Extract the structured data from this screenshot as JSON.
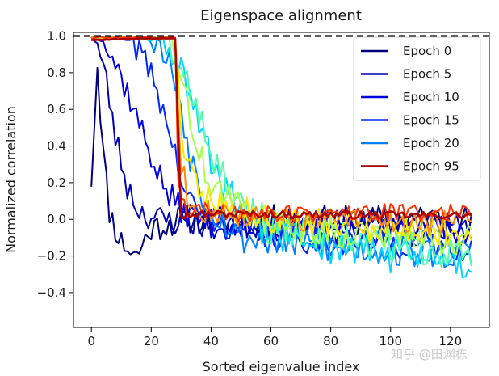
{
  "chart_data": {
    "type": "line",
    "title": "Eigenspace alignment",
    "xlabel": "Sorted eigenvalue index",
    "ylabel": "Normalized correlation",
    "xlim": [
      -6,
      133
    ],
    "ylim": [
      -0.59,
      1.02
    ],
    "xticks": [
      0,
      20,
      40,
      60,
      80,
      100,
      120
    ],
    "yticks": [
      -0.4,
      -0.2,
      0.0,
      0.2,
      0.4,
      0.6,
      0.8,
      1.0
    ],
    "ytick_labels": [
      "−0.4",
      "−0.2",
      "0.0",
      "0.2",
      "0.4",
      "0.6",
      "0.8",
      "1.0"
    ],
    "reference_line": {
      "y": 1.0,
      "style": "dashed",
      "color": "#000000"
    },
    "grid": false,
    "legend": {
      "position": "top-right",
      "entries": [
        "Epoch 0",
        "Epoch 5",
        "Epoch 10",
        "Epoch 15",
        "Epoch 20",
        "Epoch 95"
      ]
    },
    "num_points": 128,
    "series": [
      {
        "name": "Epoch 0",
        "color": "#00007f",
        "legend": true,
        "anchors": [
          [
            0,
            0.22
          ],
          [
            2,
            0.85
          ],
          [
            4,
            0.35
          ],
          [
            6,
            0.05
          ],
          [
            8,
            -0.05
          ],
          [
            10,
            -0.12
          ],
          [
            15,
            -0.2
          ],
          [
            20,
            -0.05
          ],
          [
            30,
            0.0
          ],
          [
            60,
            0.0
          ],
          [
            127,
            0.0
          ]
        ],
        "noise": 0.08,
        "seed": 11
      },
      {
        "name": "Epoch 5",
        "color": "#0000b0",
        "legend": true,
        "anchors": [
          [
            0,
            1.0
          ],
          [
            2,
            0.95
          ],
          [
            5,
            0.75
          ],
          [
            8,
            0.45
          ],
          [
            12,
            0.18
          ],
          [
            16,
            0.05
          ],
          [
            22,
            0.0
          ],
          [
            40,
            -0.03
          ],
          [
            127,
            -0.02
          ]
        ],
        "noise": 0.08,
        "seed": 23
      },
      {
        "name": "Epoch 10",
        "color": "#0000e0",
        "legend": true,
        "anchors": [
          [
            0,
            1.0
          ],
          [
            4,
            0.98
          ],
          [
            8,
            0.85
          ],
          [
            12,
            0.7
          ],
          [
            16,
            0.52
          ],
          [
            20,
            0.35
          ],
          [
            25,
            0.15
          ],
          [
            30,
            0.05
          ],
          [
            45,
            -0.05
          ],
          [
            127,
            -0.08
          ]
        ],
        "noise": 0.08,
        "seed": 37
      },
      {
        "name": "Epoch 15",
        "color": "#0026ff",
        "legend": true,
        "anchors": [
          [
            0,
            1.0
          ],
          [
            10,
            0.99
          ],
          [
            15,
            0.95
          ],
          [
            20,
            0.8
          ],
          [
            24,
            0.6
          ],
          [
            28,
            0.35
          ],
          [
            32,
            0.1
          ],
          [
            40,
            0.0
          ],
          [
            60,
            -0.1
          ],
          [
            127,
            -0.15
          ]
        ],
        "noise": 0.08,
        "seed": 41
      },
      {
        "name": "Epoch 20",
        "color": "#0080ff",
        "legend": true,
        "anchors": [
          [
            0,
            1.0
          ],
          [
            18,
            0.99
          ],
          [
            22,
            0.95
          ],
          [
            26,
            0.85
          ],
          [
            29,
            0.7
          ],
          [
            33,
            0.35
          ],
          [
            38,
            0.1
          ],
          [
            50,
            -0.1
          ],
          [
            80,
            -0.15
          ],
          [
            127,
            -0.2
          ]
        ],
        "noise": 0.09,
        "seed": 53
      },
      {
        "name": "",
        "color": "#00d4ff",
        "legend": false,
        "anchors": [
          [
            0,
            1.0
          ],
          [
            24,
            0.98
          ],
          [
            28,
            0.9
          ],
          [
            30,
            0.8
          ],
          [
            34,
            0.6
          ],
          [
            38,
            0.4
          ],
          [
            45,
            0.15
          ],
          [
            55,
            -0.05
          ],
          [
            80,
            -0.15
          ],
          [
            127,
            -0.25
          ]
        ],
        "noise": 0.1,
        "seed": 61
      },
      {
        "name": "",
        "color": "#4dffa9",
        "legend": false,
        "anchors": [
          [
            0,
            1.0
          ],
          [
            26,
            0.99
          ],
          [
            30,
            0.85
          ],
          [
            34,
            0.7
          ],
          [
            38,
            0.5
          ],
          [
            42,
            0.3
          ],
          [
            50,
            0.1
          ],
          [
            60,
            -0.05
          ],
          [
            90,
            -0.12
          ],
          [
            127,
            -0.2
          ]
        ],
        "noise": 0.1,
        "seed": 67
      },
      {
        "name": "",
        "color": "#a9ff4d",
        "legend": false,
        "anchors": [
          [
            0,
            1.0
          ],
          [
            27,
            0.99
          ],
          [
            30,
            0.75
          ],
          [
            33,
            0.55
          ],
          [
            36,
            0.35
          ],
          [
            40,
            0.2
          ],
          [
            50,
            0.05
          ],
          [
            70,
            -0.05
          ],
          [
            127,
            -0.12
          ]
        ],
        "noise": 0.09,
        "seed": 71
      },
      {
        "name": "",
        "color": "#ffe600",
        "legend": false,
        "anchors": [
          [
            0,
            1.0
          ],
          [
            28,
            0.99
          ],
          [
            29.5,
            0.6
          ],
          [
            31,
            0.4
          ],
          [
            34,
            0.22
          ],
          [
            40,
            0.1
          ],
          [
            60,
            0.0
          ],
          [
            127,
            -0.08
          ]
        ],
        "noise": 0.08,
        "seed": 79
      },
      {
        "name": "",
        "color": "#ff8c00",
        "legend": false,
        "anchors": [
          [
            0,
            1.0
          ],
          [
            28,
            0.99
          ],
          [
            29.5,
            0.35
          ],
          [
            32,
            0.15
          ],
          [
            38,
            0.05
          ],
          [
            60,
            0.0
          ],
          [
            127,
            -0.02
          ]
        ],
        "noise": 0.07,
        "seed": 83
      },
      {
        "name": "",
        "color": "#ff3000",
        "legend": false,
        "anchors": [
          [
            0,
            0.99
          ],
          [
            28,
            0.99
          ],
          [
            29.2,
            0.12
          ],
          [
            32,
            0.05
          ],
          [
            60,
            0.03
          ],
          [
            127,
            0.04
          ]
        ],
        "noise": 0.05,
        "seed": 89
      },
      {
        "name": "Epoch 95",
        "color": "#aa0000",
        "legend": true,
        "anchors": [
          [
            0,
            0.98
          ],
          [
            28,
            0.99
          ],
          [
            28.8,
            0.99
          ],
          [
            29.2,
            0.02
          ],
          [
            40,
            0.03
          ],
          [
            127,
            0.02
          ]
        ],
        "noise": 0.02,
        "seed": 97
      }
    ]
  },
  "watermark": "知乎 @田渊栋"
}
